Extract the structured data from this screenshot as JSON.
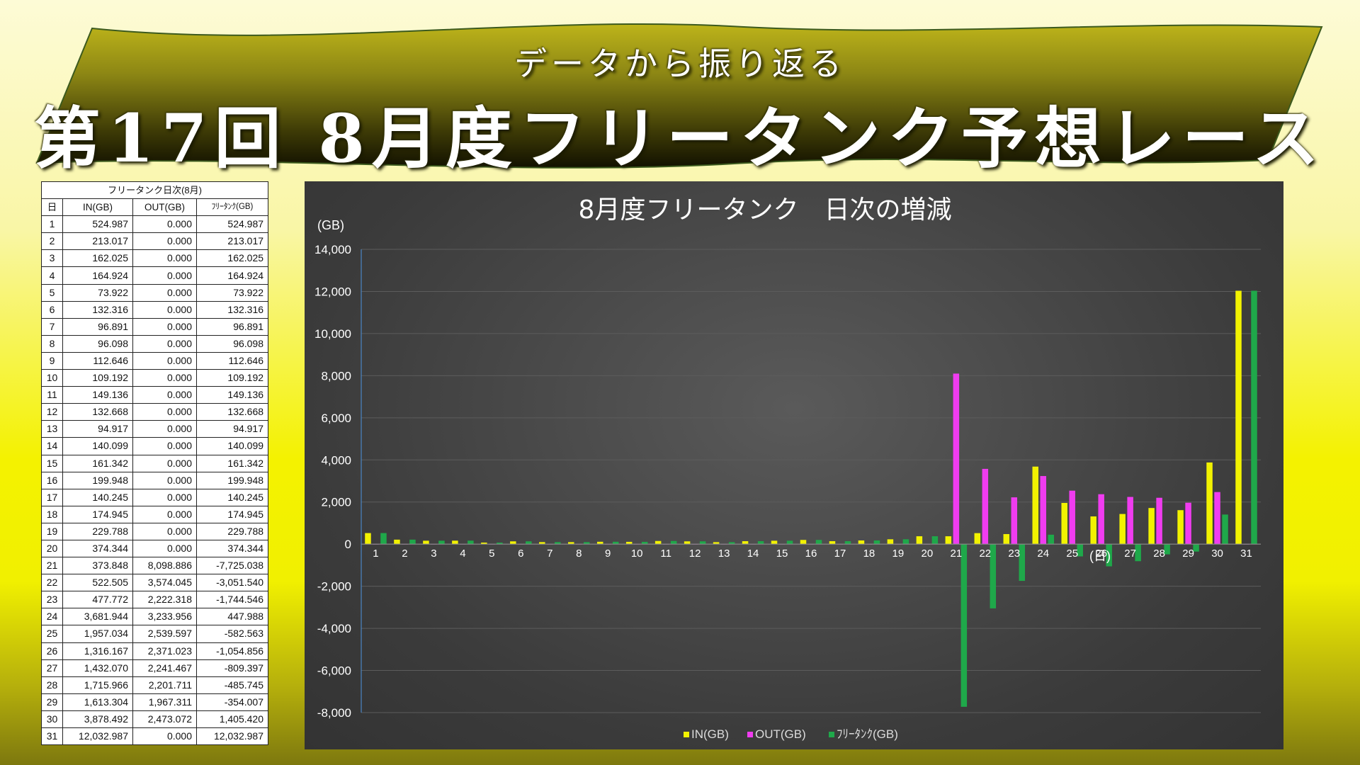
{
  "banner": {
    "subtitle": "データから振り返る",
    "title": "第17回 8月度フリータンク予想レース"
  },
  "table": {
    "caption": "フリータンク日次(8月)",
    "headers": [
      "日",
      "IN(GB)",
      "OUT(GB)",
      "ﾌﾘｰﾀﾝｸ(GB)"
    ],
    "rows": [
      [
        "1",
        "524.987",
        "0.000",
        "524.987"
      ],
      [
        "2",
        "213.017",
        "0.000",
        "213.017"
      ],
      [
        "3",
        "162.025",
        "0.000",
        "162.025"
      ],
      [
        "4",
        "164.924",
        "0.000",
        "164.924"
      ],
      [
        "5",
        "73.922",
        "0.000",
        "73.922"
      ],
      [
        "6",
        "132.316",
        "0.000",
        "132.316"
      ],
      [
        "7",
        "96.891",
        "0.000",
        "96.891"
      ],
      [
        "8",
        "96.098",
        "0.000",
        "96.098"
      ],
      [
        "9",
        "112.646",
        "0.000",
        "112.646"
      ],
      [
        "10",
        "109.192",
        "0.000",
        "109.192"
      ],
      [
        "11",
        "149.136",
        "0.000",
        "149.136"
      ],
      [
        "12",
        "132.668",
        "0.000",
        "132.668"
      ],
      [
        "13",
        "94.917",
        "0.000",
        "94.917"
      ],
      [
        "14",
        "140.099",
        "0.000",
        "140.099"
      ],
      [
        "15",
        "161.342",
        "0.000",
        "161.342"
      ],
      [
        "16",
        "199.948",
        "0.000",
        "199.948"
      ],
      [
        "17",
        "140.245",
        "0.000",
        "140.245"
      ],
      [
        "18",
        "174.945",
        "0.000",
        "174.945"
      ],
      [
        "19",
        "229.788",
        "0.000",
        "229.788"
      ],
      [
        "20",
        "374.344",
        "0.000",
        "374.344"
      ],
      [
        "21",
        "373.848",
        "8,098.886",
        "-7,725.038"
      ],
      [
        "22",
        "522.505",
        "3,574.045",
        "-3,051.540"
      ],
      [
        "23",
        "477.772",
        "2,222.318",
        "-1,744.546"
      ],
      [
        "24",
        "3,681.944",
        "3,233.956",
        "447.988"
      ],
      [
        "25",
        "1,957.034",
        "2,539.597",
        "-582.563"
      ],
      [
        "26",
        "1,316.167",
        "2,371.023",
        "-1,054.856"
      ],
      [
        "27",
        "1,432.070",
        "2,241.467",
        "-809.397"
      ],
      [
        "28",
        "1,715.966",
        "2,201.711",
        "-485.745"
      ],
      [
        "29",
        "1,613.304",
        "1,967.311",
        "-354.007"
      ],
      [
        "30",
        "3,878.492",
        "2,473.072",
        "1,405.420"
      ],
      [
        "31",
        "12,032.987",
        "0.000",
        "12,032.987"
      ]
    ]
  },
  "chart_data": {
    "type": "bar",
    "title": "8月度フリータンク　日次の増減",
    "ylabel": "(GB)",
    "xlabel": "(日)",
    "ylim": [
      -8000,
      14000
    ],
    "yticks": [
      14000,
      12000,
      10000,
      8000,
      6000,
      4000,
      2000,
      0,
      -2000,
      -4000,
      -6000,
      -8000
    ],
    "ytick_labels": [
      "14,000",
      "12,000",
      "10,000",
      "8,000",
      "6,000",
      "4,000",
      "2,000",
      "0",
      "-2,000",
      "-4,000",
      "-6,000",
      "-8,000"
    ],
    "grid": true,
    "legend_position": "bottom",
    "categories": [
      "1",
      "2",
      "3",
      "4",
      "5",
      "6",
      "7",
      "8",
      "9",
      "10",
      "11",
      "12",
      "13",
      "14",
      "15",
      "16",
      "17",
      "18",
      "19",
      "20",
      "21",
      "22",
      "23",
      "24",
      "25",
      "26",
      "27",
      "28",
      "29",
      "30",
      "31"
    ],
    "series": [
      {
        "name": "IN(GB)",
        "color": "#f2f200",
        "values": [
          524.987,
          213.017,
          162.025,
          164.924,
          73.922,
          132.316,
          96.891,
          96.098,
          112.646,
          109.192,
          149.136,
          132.668,
          94.917,
          140.099,
          161.342,
          199.948,
          140.245,
          174.945,
          229.788,
          374.344,
          373.848,
          522.505,
          477.772,
          3681.944,
          1957.034,
          1316.167,
          1432.07,
          1715.966,
          1613.304,
          3878.492,
          12032.987
        ]
      },
      {
        "name": "OUT(GB)",
        "color": "#f03cf0",
        "values": [
          0,
          0,
          0,
          0,
          0,
          0,
          0,
          0,
          0,
          0,
          0,
          0,
          0,
          0,
          0,
          0,
          0,
          0,
          0,
          0,
          8098.886,
          3574.045,
          2222.318,
          3233.956,
          2539.597,
          2371.023,
          2241.467,
          2201.711,
          1967.311,
          2473.072,
          0
        ]
      },
      {
        "name": "ﾌﾘｰﾀﾝｸ(GB)",
        "color": "#1fa84a",
        "values": [
          524.987,
          213.017,
          162.025,
          164.924,
          73.922,
          132.316,
          96.891,
          96.098,
          112.646,
          109.192,
          149.136,
          132.668,
          94.917,
          140.099,
          161.342,
          199.948,
          140.245,
          174.945,
          229.788,
          374.344,
          -7725.038,
          -3051.54,
          -1744.546,
          447.988,
          -582.563,
          -1054.856,
          -809.397,
          -485.745,
          -354.007,
          1405.42,
          12032.987
        ]
      }
    ]
  }
}
